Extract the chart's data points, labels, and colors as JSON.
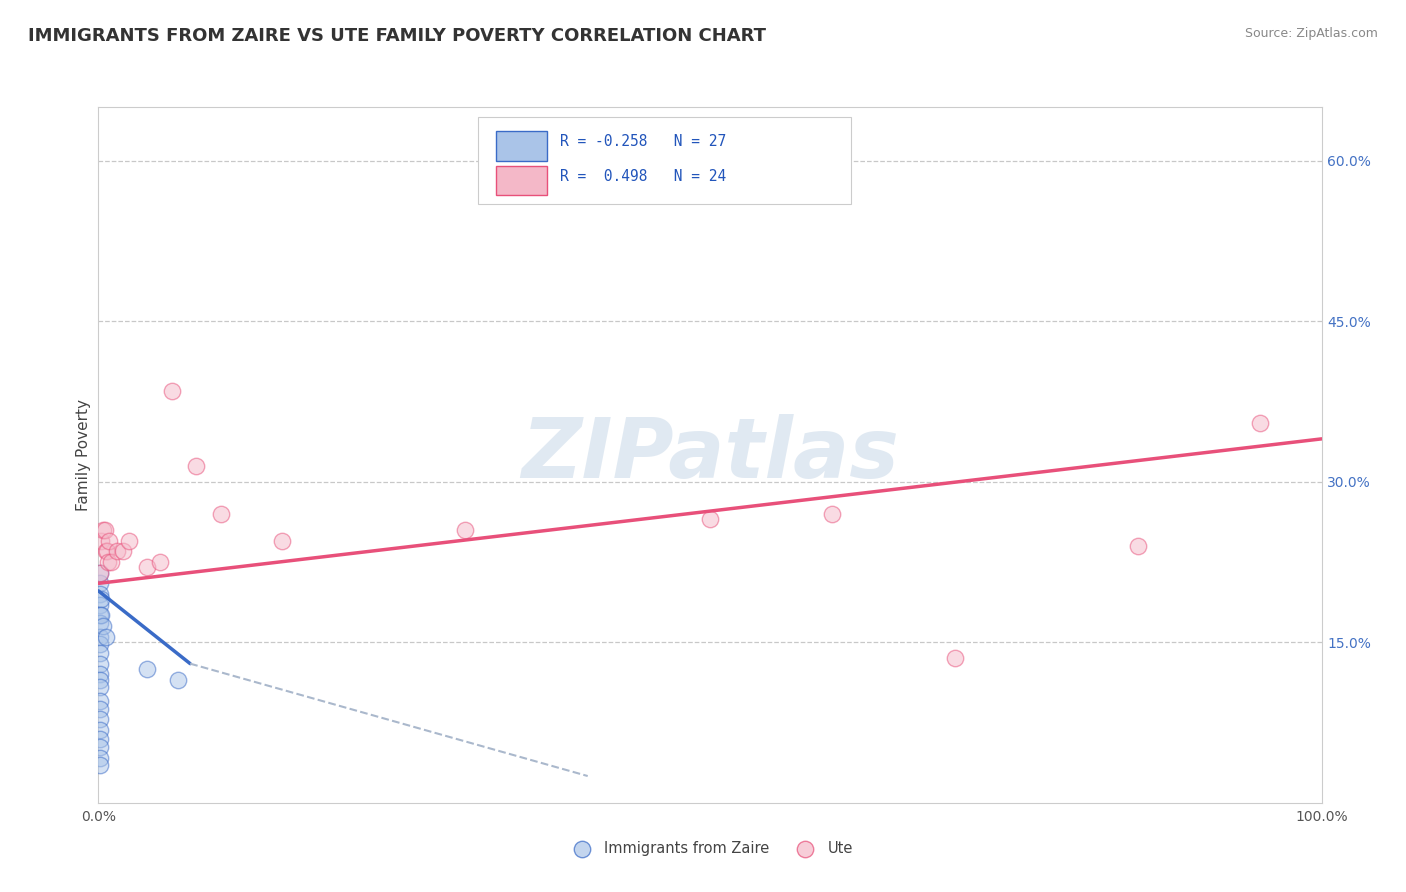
{
  "title": "IMMIGRANTS FROM ZAIRE VS UTE FAMILY POVERTY CORRELATION CHART",
  "source": "Source: ZipAtlas.com",
  "ylabel": "Family Poverty",
  "xlim": [
    0,
    1.0
  ],
  "ylim": [
    0,
    0.65
  ],
  "grid_yticks": [
    0.15,
    0.3,
    0.45,
    0.6
  ],
  "watermark": "ZIPatlas",
  "blue_color": "#aac4e8",
  "pink_color": "#f4b8c8",
  "blue_line_color": "#3a6bc7",
  "pink_line_color": "#e8507a",
  "dashed_line_color": "#aab8cc",
  "blue_scatter": [
    [
      0.001,
      0.205
    ],
    [
      0.001,
      0.215
    ],
    [
      0.001,
      0.195
    ],
    [
      0.001,
      0.185
    ],
    [
      0.001,
      0.175
    ],
    [
      0.001,
      0.168
    ],
    [
      0.001,
      0.155
    ],
    [
      0.001,
      0.148
    ],
    [
      0.001,
      0.14
    ],
    [
      0.001,
      0.13
    ],
    [
      0.001,
      0.12
    ],
    [
      0.001,
      0.115
    ],
    [
      0.001,
      0.108
    ],
    [
      0.001,
      0.095
    ],
    [
      0.001,
      0.088
    ],
    [
      0.001,
      0.078
    ],
    [
      0.001,
      0.068
    ],
    [
      0.001,
      0.06
    ],
    [
      0.001,
      0.052
    ],
    [
      0.001,
      0.042
    ],
    [
      0.002,
      0.19
    ],
    [
      0.002,
      0.175
    ],
    [
      0.004,
      0.165
    ],
    [
      0.006,
      0.155
    ],
    [
      0.04,
      0.125
    ],
    [
      0.065,
      0.115
    ],
    [
      0.001,
      0.035
    ]
  ],
  "pink_scatter": [
    [
      0.001,
      0.215
    ],
    [
      0.002,
      0.245
    ],
    [
      0.004,
      0.255
    ],
    [
      0.005,
      0.255
    ],
    [
      0.006,
      0.235
    ],
    [
      0.007,
      0.235
    ],
    [
      0.008,
      0.225
    ],
    [
      0.009,
      0.245
    ],
    [
      0.01,
      0.225
    ],
    [
      0.015,
      0.235
    ],
    [
      0.02,
      0.235
    ],
    [
      0.025,
      0.245
    ],
    [
      0.04,
      0.22
    ],
    [
      0.05,
      0.225
    ],
    [
      0.06,
      0.385
    ],
    [
      0.08,
      0.315
    ],
    [
      0.1,
      0.27
    ],
    [
      0.15,
      0.245
    ],
    [
      0.3,
      0.255
    ],
    [
      0.5,
      0.265
    ],
    [
      0.6,
      0.27
    ],
    [
      0.7,
      0.135
    ],
    [
      0.85,
      0.24
    ],
    [
      0.95,
      0.355
    ]
  ],
  "blue_line_x": [
    0.0,
    0.075
  ],
  "blue_line_y": [
    0.198,
    0.13
  ],
  "dashed_line_x": [
    0.075,
    0.4
  ],
  "dashed_line_y": [
    0.13,
    0.025
  ],
  "pink_line_x": [
    0.0,
    1.0
  ],
  "pink_line_y": [
    0.205,
    0.34
  ],
  "background_color": "#ffffff",
  "title_fontsize": 13,
  "axis_label_fontsize": 11,
  "tick_fontsize": 10,
  "scatter_size": 140,
  "scatter_alpha": 0.5,
  "scatter_linewidth": 1.0
}
